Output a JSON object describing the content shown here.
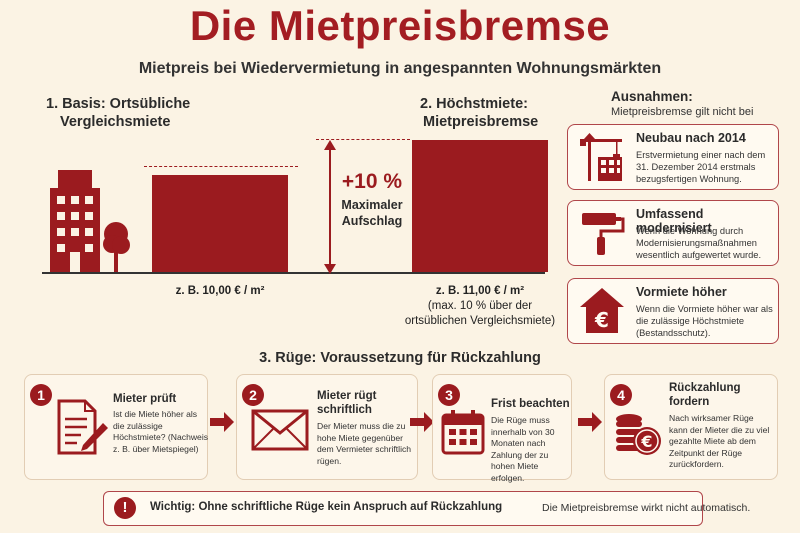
{
  "title": "Die Mietpreisbremse",
  "subtitle": "Mietpreis bei Wiedervermietung in angespannten Wohnungsmärkten",
  "basis": {
    "heading_line1": "1. Basis: Ortsübliche",
    "heading_line2": "Vergleichsmiete",
    "caption": "z. B. 10,00 € / m²"
  },
  "hoechst": {
    "heading_line1": "2. Höchstmiete:",
    "heading_line2": "Mietpreisbremse",
    "caption": "z. B. 11,00 € / m²",
    "note_line1": "(max. 10 % über der",
    "note_line2": "ortsüblichen Vergleichsmiete)"
  },
  "aufschlag": {
    "percent": "+10 %",
    "label_line1": "Maximaler",
    "label_line2": "Aufschlag"
  },
  "ausnahmen": {
    "heading": "Ausnahmen:",
    "subheading": "Mietpreisbremse gilt nicht bei",
    "items": [
      {
        "title": "Neubau nach 2014",
        "text": "Erstvermietung einer nach dem 31. Dezember 2014 erstmals bezugsfertigen Wohnung.",
        "icon": "construction-crane-icon"
      },
      {
        "title": "Umfassend modernisiert",
        "text": "Wenn die Wohnung durch Modernisierungsmaßnahmen wesentlich aufgewertet wurde.",
        "icon": "paint-roller-icon"
      },
      {
        "title": "Vormiete höher",
        "text": "Wenn die Vormiete höher war als die zulässige Höchstmiete (Bestandsschutz).",
        "icon": "house-euro-icon"
      }
    ]
  },
  "ruege": {
    "heading": "3. Rüge: Voraussetzung für Rückzahlung",
    "steps": [
      {
        "num": "1",
        "title_line1": "Mieter prüft",
        "title_line2": "",
        "text": "Ist die Miete höher als die zulässige Höchstmiete? (Nachweis z. B. über Mietspiegel)",
        "icon": "document-pen-icon"
      },
      {
        "num": "2",
        "title_line1": "Mieter rügt",
        "title_line2": "schriftlich",
        "text": "Der Mieter muss die zu hohe Miete gegenüber dem Vermieter schriftlich rügen.",
        "icon": "envelope-icon"
      },
      {
        "num": "3",
        "title_line1": "Frist beachten",
        "title_line2": "",
        "text": "Die Rüge muss innerhalb von 30 Monaten nach Zahlung der zu hohen Miete erfolgen.",
        "icon": "calendar-icon"
      },
      {
        "num": "4",
        "title_line1": "Rückzahlung",
        "title_line2": "fordern",
        "text": "Nach wirksamer Rüge kann der Mieter die zu viel gezahlte Miete ab dem Zeitpunkt der Rüge zurückfordern.",
        "icon": "coins-euro-icon"
      }
    ]
  },
  "warning": {
    "mark": "!",
    "bold": "Wichtig: Ohne schriftliche Rüge kein Anspruch auf Rückzahlung",
    "normal": "Die Mietpreisbremse wirkt nicht automatisch."
  },
  "colors": {
    "accent": "#9b1b1f",
    "background": "#fbf3e4"
  }
}
